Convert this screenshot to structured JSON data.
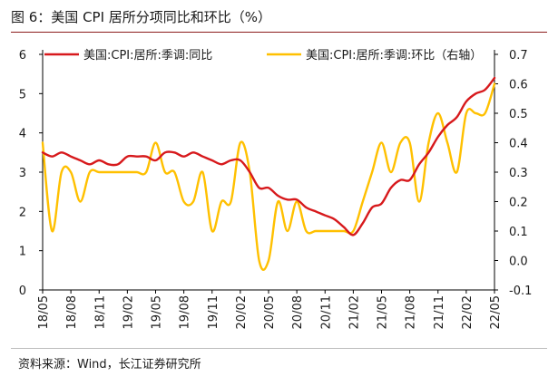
{
  "title": "图 6：美国 CPI 居所分项同比和环比（%）",
  "source": "资料来源：Wind，长江证券研究所",
  "colors": {
    "series_yoy": "#d7191c",
    "series_mom": "#ffc000",
    "axis": "#000000",
    "title_rule": "#8c1d1d"
  },
  "chart_data": {
    "type": "line",
    "x_tick_labels": [
      "18/05",
      "18/08",
      "18/11",
      "19/02",
      "19/05",
      "19/08",
      "19/11",
      "20/02",
      "20/05",
      "20/08",
      "20/11",
      "21/02",
      "21/05",
      "21/08",
      "21/11",
      "22/02",
      "22/05"
    ],
    "x": [
      "18/05",
      "18/06",
      "18/07",
      "18/08",
      "18/09",
      "18/10",
      "18/11",
      "18/12",
      "19/01",
      "19/02",
      "19/03",
      "19/04",
      "19/05",
      "19/06",
      "19/07",
      "19/08",
      "19/09",
      "19/10",
      "19/11",
      "19/12",
      "20/01",
      "20/02",
      "20/03",
      "20/04",
      "20/05",
      "20/06",
      "20/07",
      "20/08",
      "20/09",
      "20/10",
      "20/11",
      "20/12",
      "21/01",
      "21/02",
      "21/03",
      "21/04",
      "21/05",
      "21/06",
      "21/07",
      "21/08",
      "21/09",
      "21/10",
      "21/11",
      "21/12",
      "22/01",
      "22/02",
      "22/03",
      "22/04",
      "22/05"
    ],
    "series": [
      {
        "name": "美国:CPI:居所:季调:同比",
        "axis": "left",
        "values": [
          3.5,
          3.4,
          3.5,
          3.4,
          3.3,
          3.2,
          3.3,
          3.2,
          3.2,
          3.4,
          3.4,
          3.4,
          3.3,
          3.5,
          3.5,
          3.4,
          3.5,
          3.4,
          3.3,
          3.2,
          3.3,
          3.3,
          3.0,
          2.6,
          2.6,
          2.4,
          2.3,
          2.3,
          2.1,
          2.0,
          1.9,
          1.8,
          1.6,
          1.4,
          1.7,
          2.1,
          2.2,
          2.6,
          2.8,
          2.8,
          3.2,
          3.5,
          3.9,
          4.2,
          4.4,
          4.8,
          5.0,
          5.1,
          5.4
        ]
      },
      {
        "name": "美国:CPI:居所:季调:环比（右轴）",
        "axis": "right",
        "values": [
          0.4,
          0.1,
          0.3,
          0.3,
          0.2,
          0.3,
          0.3,
          0.3,
          0.3,
          0.3,
          0.3,
          0.3,
          0.4,
          0.3,
          0.3,
          0.2,
          0.2,
          0.3,
          0.1,
          0.2,
          0.2,
          0.4,
          0.3,
          0.0,
          0.0,
          0.2,
          0.1,
          0.2,
          0.1,
          0.1,
          0.1,
          0.1,
          0.1,
          0.1,
          0.2,
          0.3,
          0.4,
          0.3,
          0.4,
          0.4,
          0.2,
          0.4,
          0.5,
          0.4,
          0.3,
          0.5,
          0.5,
          0.5,
          0.6
        ]
      }
    ],
    "y_left": {
      "min": 0,
      "max": 6,
      "ticks": [
        "0",
        "1",
        "2",
        "3",
        "4",
        "5",
        "6"
      ]
    },
    "y_right": {
      "min": -0.1,
      "max": 0.7,
      "ticks": [
        "-0.1",
        "0.0",
        "0.1",
        "0.2",
        "0.3",
        "0.4",
        "0.5",
        "0.6",
        "0.7"
      ]
    },
    "legend_position": "top",
    "grid": false
  }
}
